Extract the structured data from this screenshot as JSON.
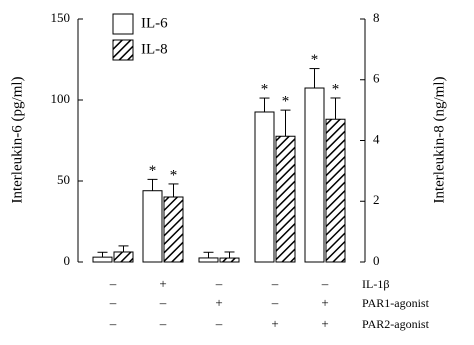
{
  "chart_data": {
    "type": "bar",
    "y_label": "Interleukin-6 (pg/ml)",
    "y2_label": "Interleukin-8 (ng/ml)",
    "ylim": [
      0,
      150
    ],
    "yticks": [
      0,
      50,
      100,
      150
    ],
    "y2lim": [
      0,
      8
    ],
    "y2ticks": [
      0,
      2,
      4,
      6,
      8
    ],
    "categories": [
      null,
      null,
      null,
      null,
      null
    ],
    "series": [
      {
        "name": "IL-6",
        "color": "#ffffff",
        "pattern": "solid",
        "values": [
          3,
          44,
          2.5,
          92.6,
          107.4
        ],
        "errors": [
          3,
          7,
          3.5,
          8.6,
          12
        ],
        "markers": [
          null,
          "*",
          null,
          "*",
          "*"
        ]
      },
      {
        "name": "IL-8",
        "color": "#ffffff",
        "pattern": "hatch",
        "axis": "y2",
        "values": [
          0.33,
          2.14,
          0.13,
          4.14,
          4.7
        ],
        "errors": [
          0.2,
          0.43,
          0.2,
          0.86,
          0.7
        ],
        "markers": [
          null,
          "*",
          null,
          "*",
          "*"
        ]
      }
    ],
    "conditions": [
      {
        "label": "IL-1β",
        "values": [
          "–",
          "+",
          "–",
          "–",
          "–"
        ]
      },
      {
        "label": "PAR1-agonist",
        "values": [
          "–",
          "–",
          "+",
          "–",
          "+"
        ]
      },
      {
        "label": "PAR2-agonist",
        "values": [
          "–",
          "–",
          "–",
          "+",
          "+"
        ]
      }
    ]
  }
}
